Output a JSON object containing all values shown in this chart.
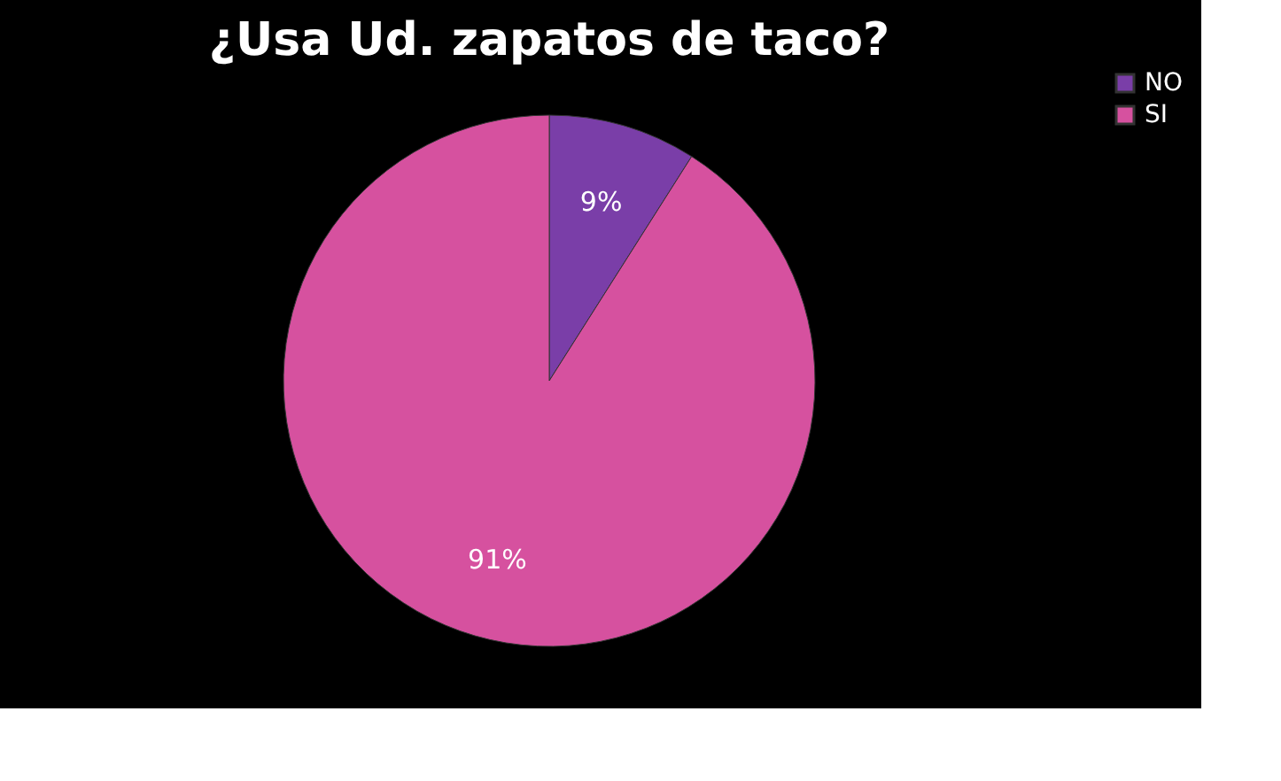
{
  "chart_data": {
    "type": "pie",
    "title": "¿Usa Ud. zapatos de taco?",
    "categories": [
      "NO",
      "SI"
    ],
    "values": [
      9,
      91
    ],
    "value_labels": [
      "9%",
      "91%"
    ],
    "colors": [
      "#7a3ea8",
      "#d6519f"
    ],
    "legend": "right"
  }
}
